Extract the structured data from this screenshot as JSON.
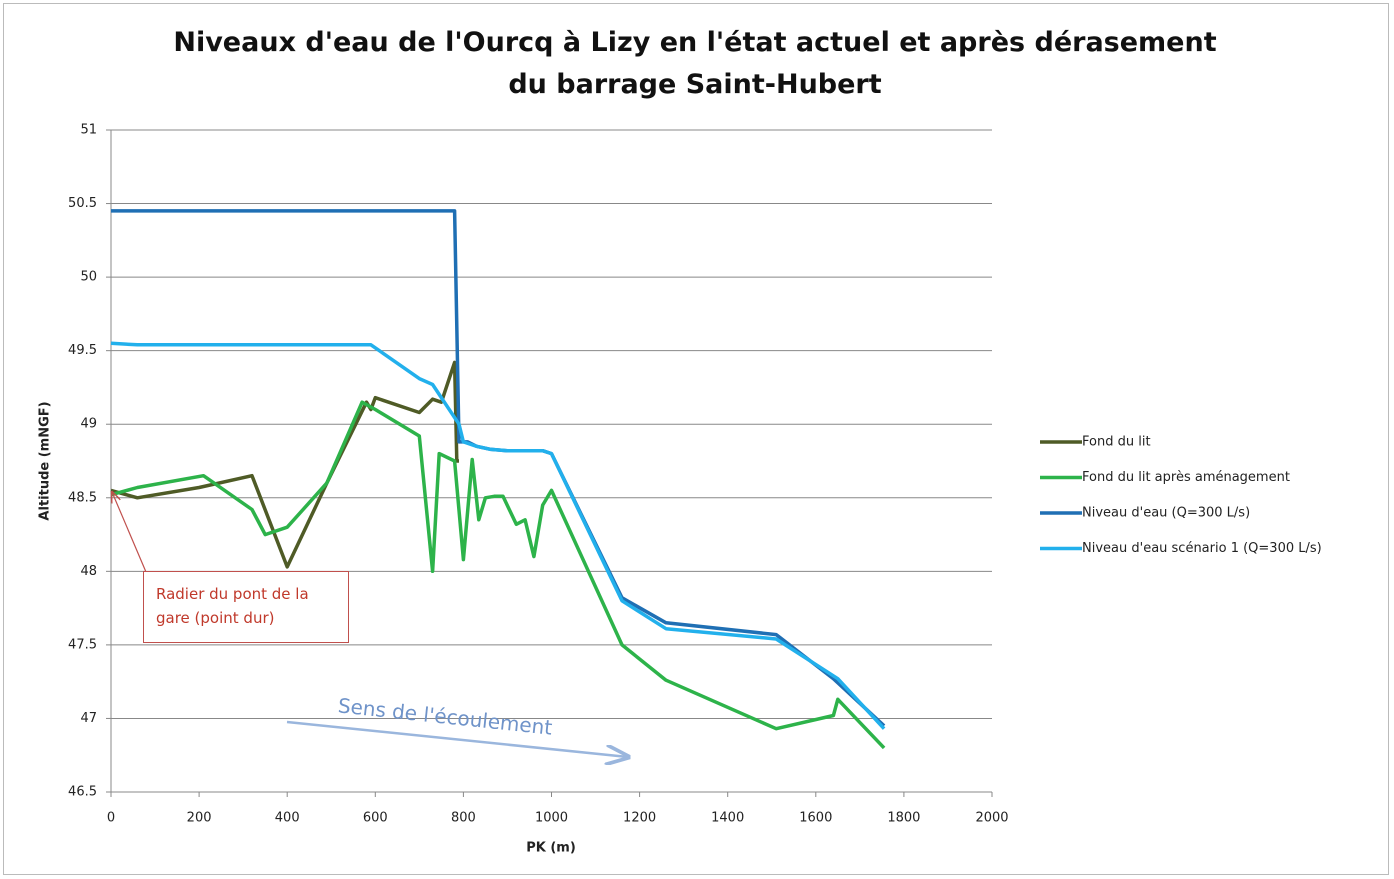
{
  "chart_data": {
    "type": "line",
    "title": "Niveaux d'eau de l'Ourcq à Lizy en l'état actuel et après dérasement du barrage Saint-Hubert",
    "xlabel": "PK (m)",
    "ylabel": "Altitude (mNGF)",
    "xlim": [
      0,
      2000
    ],
    "xticks": [
      0,
      200,
      400,
      600,
      800,
      1000,
      1200,
      1400,
      1600,
      1800,
      2000
    ],
    "ylim": [
      46.5,
      51
    ],
    "yticks": [
      46.5,
      47,
      47.5,
      48,
      48.5,
      49,
      49.5,
      50,
      50.5,
      51
    ],
    "grid": true,
    "legend": "right",
    "annotations": [
      "Radier du pont de la gare (point dur)",
      "Sens de l'écoulement"
    ],
    "series": [
      {
        "name": "Fond du lit",
        "color": "#4f5b26",
        "x": [
          0,
          60,
          200,
          320,
          400,
          490,
          580,
          590,
          600,
          700,
          730,
          750,
          780,
          785,
          790
        ],
        "values": [
          48.55,
          48.5,
          48.57,
          48.65,
          48.03,
          48.6,
          49.15,
          49.1,
          49.18,
          49.08,
          49.17,
          49.15,
          49.42,
          48.75,
          48.75
        ]
      },
      {
        "name": "Fond du lit après aménagement",
        "color": "#2db34a",
        "x": [
          0,
          60,
          210,
          320,
          350,
          400,
          490,
          570,
          600,
          700,
          730,
          745,
          780,
          800,
          820,
          835,
          850,
          870,
          890,
          920,
          940,
          960,
          980,
          1000,
          1160,
          1260,
          1510,
          1640,
          1650,
          1755
        ],
        "values": [
          48.52,
          48.57,
          48.65,
          48.42,
          48.25,
          48.3,
          48.6,
          49.15,
          49.1,
          48.92,
          48.0,
          48.8,
          48.75,
          48.08,
          48.76,
          48.35,
          48.5,
          48.51,
          48.51,
          48.32,
          48.35,
          48.1,
          48.45,
          48.55,
          47.5,
          47.26,
          46.93,
          47.02,
          47.13,
          46.8
        ]
      },
      {
        "name": "Niveau d'eau (Q=300 L/s)",
        "color": "#1f6fb4",
        "x": [
          0,
          780,
          790,
          810,
          830,
          860,
          900,
          980,
          1000,
          1160,
          1260,
          1510,
          1640,
          1755
        ],
        "values": [
          50.45,
          50.45,
          48.88,
          48.88,
          48.85,
          48.83,
          48.82,
          48.82,
          48.8,
          47.82,
          47.65,
          47.57,
          47.27,
          46.95
        ]
      },
      {
        "name": "Niveau d'eau scénario 1 (Q=300 L/s)",
        "color": "#22b0ec",
        "x": [
          0,
          60,
          590,
          700,
          730,
          790,
          800,
          830,
          860,
          900,
          980,
          1000,
          1160,
          1260,
          1510,
          1650,
          1755
        ],
        "values": [
          49.55,
          49.54,
          49.54,
          49.31,
          49.27,
          49.0,
          48.88,
          48.85,
          48.83,
          48.82,
          48.82,
          48.8,
          47.8,
          47.61,
          47.54,
          47.27,
          46.93
        ]
      }
    ]
  }
}
